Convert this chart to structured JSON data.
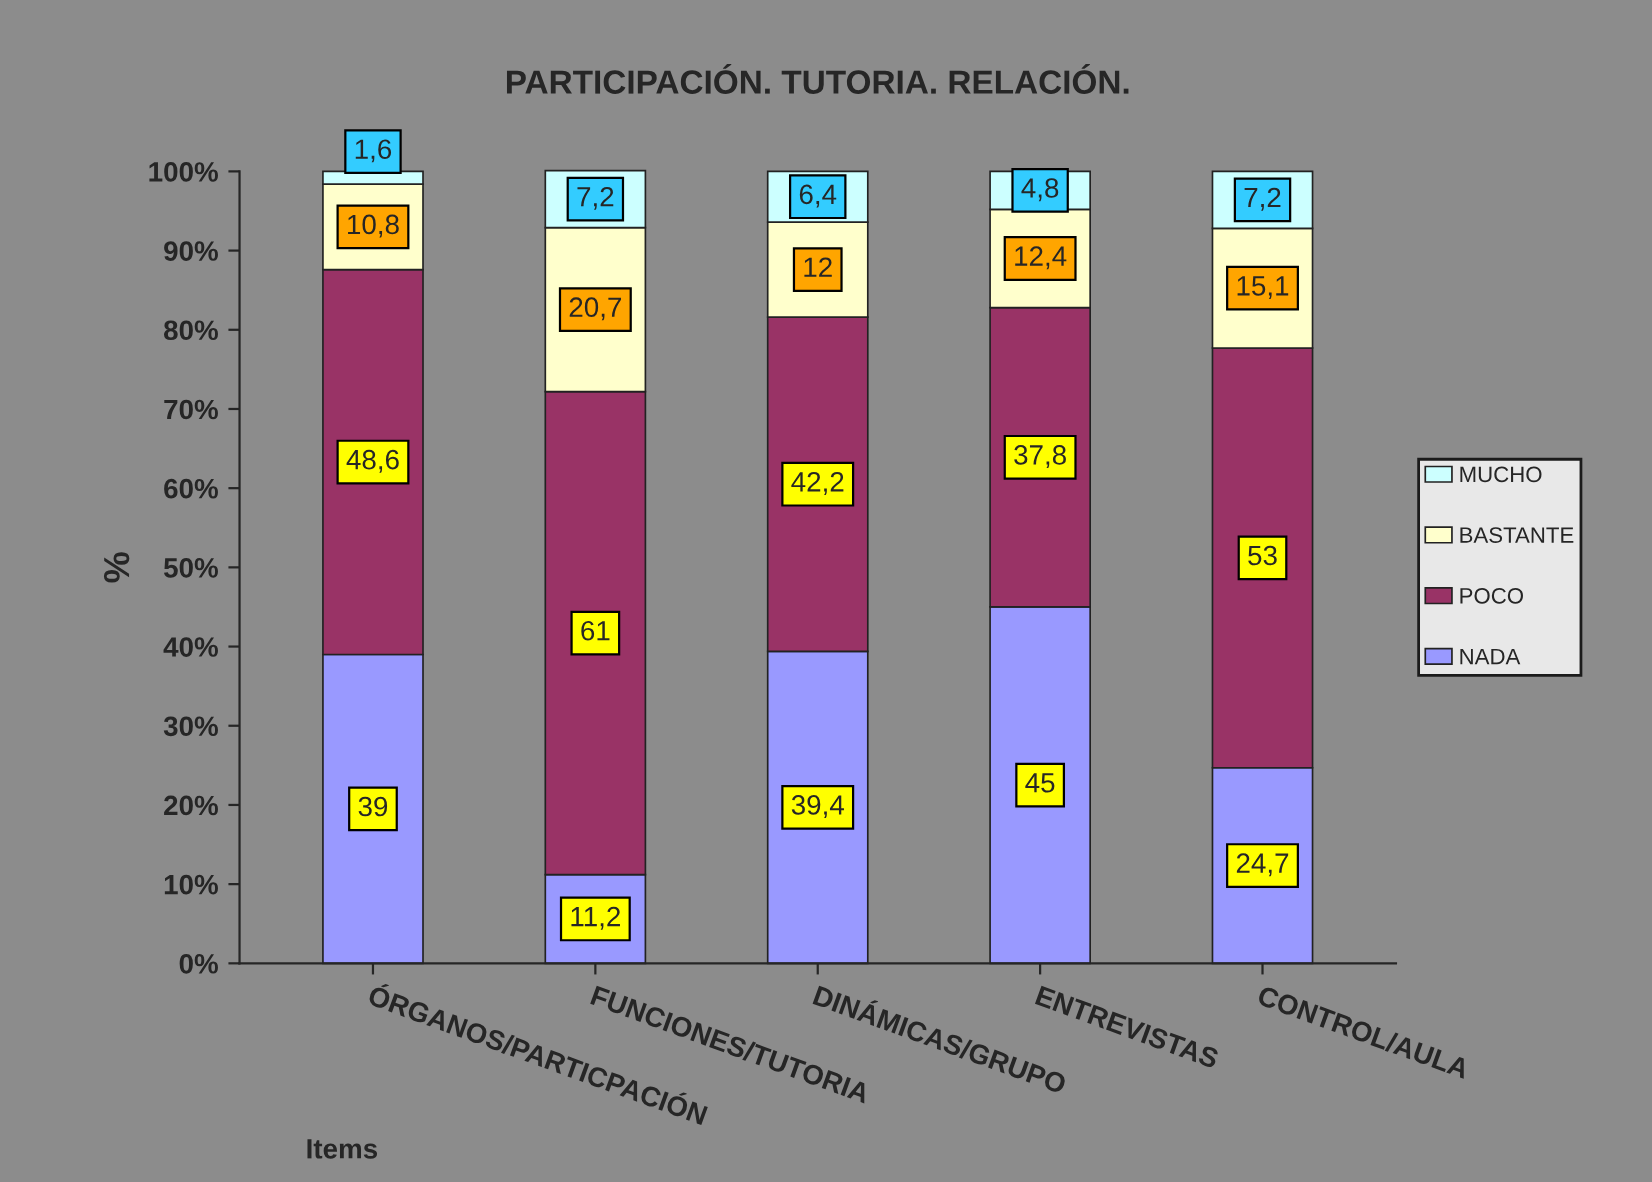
{
  "chart_data": {
    "type": "bar",
    "title": "PARTICIPACIÓN. TUTORIA. RELACIÓN.",
    "xlabel": "Items",
    "ylabel": "%",
    "stacked": true,
    "categories": [
      "ÓRGANOS/PARTICPACIÓN",
      "FUNCIONES/TUTORIA",
      "DINÁMICAS/GRUPO",
      "ENTREVISTAS",
      "CONTROL/AULA"
    ],
    "series": [
      {
        "name": "NADA",
        "color": "#9999ff",
        "values": [
          39,
          11.2,
          39.4,
          45,
          24.7
        ],
        "value_labels": [
          "39",
          "11,2",
          "39,4",
          "45",
          "24,7"
        ]
      },
      {
        "name": "POCO",
        "color": "#993366",
        "values": [
          48.6,
          61,
          42.2,
          37.8,
          53
        ],
        "value_labels": [
          "48,6",
          "61",
          "42,2",
          "37,8",
          "53"
        ]
      },
      {
        "name": "BASTANTE",
        "color": "#ffffcc",
        "values": [
          10.8,
          20.7,
          12,
          12.4,
          15.1
        ],
        "value_labels": [
          "10,8",
          "20,7",
          "12",
          "12,4",
          "15,1"
        ]
      },
      {
        "name": "MUCHO",
        "color": "#ccffff",
        "values": [
          1.6,
          7.2,
          6.4,
          4.8,
          7.2
        ],
        "value_labels": [
          "1,6",
          "7,2",
          "6,4",
          "4,8",
          "7,2"
        ]
      }
    ],
    "ylim": [
      0,
      100
    ],
    "yticks": [
      {
        "value": 0,
        "label": "0%"
      },
      {
        "value": 10,
        "label": "10%"
      },
      {
        "value": 20,
        "label": "20%"
      },
      {
        "value": 30,
        "label": "30%"
      },
      {
        "value": 40,
        "label": "40%"
      },
      {
        "value": 50,
        "label": "50%"
      },
      {
        "value": 60,
        "label": "60%"
      },
      {
        "value": 70,
        "label": "70%"
      },
      {
        "value": 80,
        "label": "80%"
      },
      {
        "value": 90,
        "label": "90%"
      },
      {
        "value": 100,
        "label": "100%"
      }
    ],
    "grid": false,
    "legend": "right"
  }
}
